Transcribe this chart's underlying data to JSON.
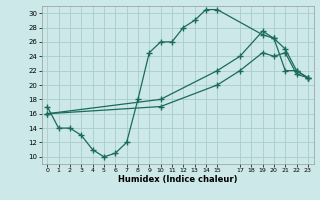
{
  "title": "",
  "xlabel": "Humidex (Indice chaleur)",
  "bg_color": "#cce8e8",
  "grid_color": "#aacccc",
  "line_color": "#1a6b5a",
  "ylim": [
    9,
    31
  ],
  "xlim": [
    -0.5,
    23.5
  ],
  "yticks": [
    10,
    12,
    14,
    16,
    18,
    20,
    22,
    24,
    26,
    28,
    30
  ],
  "xticks": [
    0,
    1,
    2,
    3,
    4,
    5,
    6,
    7,
    8,
    9,
    10,
    11,
    12,
    13,
    14,
    15,
    17,
    18,
    19,
    20,
    21,
    22,
    23
  ],
  "xlabels": [
    "0",
    "1",
    "2",
    "3",
    "4",
    "5",
    "6",
    "7",
    "8",
    "9",
    "10",
    "11",
    "12",
    "13",
    "14",
    "15",
    "17",
    "18",
    "19",
    "20",
    "21",
    "22",
    "23"
  ],
  "curve1_x": [
    0,
    1,
    2,
    3,
    4,
    5,
    6,
    7,
    8,
    9,
    10,
    11,
    12,
    13,
    14,
    15,
    19,
    20,
    21,
    22,
    23
  ],
  "curve1_y": [
    17,
    14,
    14,
    13,
    11,
    10,
    10.5,
    12,
    18,
    24.5,
    26,
    26,
    28,
    29,
    30.5,
    30.5,
    27,
    26.5,
    22,
    22,
    21
  ],
  "curve2_x": [
    0,
    10,
    15,
    17,
    19,
    20,
    21,
    22,
    23
  ],
  "curve2_y": [
    16,
    17,
    20,
    22,
    24.5,
    24,
    24.5,
    21.5,
    21
  ],
  "curve3_x": [
    0,
    10,
    15,
    17,
    19,
    20,
    21,
    22,
    23
  ],
  "curve3_y": [
    16,
    18,
    22,
    24,
    27.5,
    26.5,
    25,
    22,
    21
  ]
}
